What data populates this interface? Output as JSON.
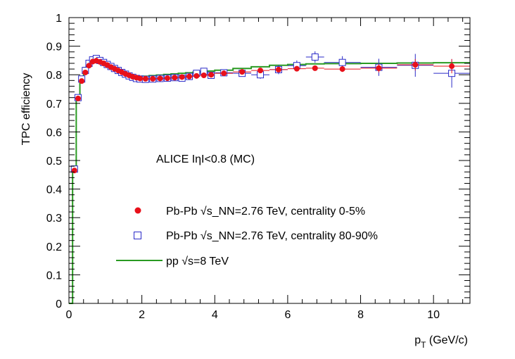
{
  "chart_data": {
    "type": "scatter",
    "ylabel": "TPC efficiency",
    "xlabel_main": "p",
    "xlabel_sub": "T",
    "xlabel_unit": " (GeV/c)",
    "xlim": [
      0,
      11
    ],
    "ylim": [
      0,
      1
    ],
    "xticks": [
      0,
      2,
      4,
      6,
      8,
      10
    ],
    "yticks": [
      0,
      0.1,
      0.2,
      0.3,
      0.4,
      0.5,
      0.6,
      0.7,
      0.8,
      0.9,
      1
    ],
    "ytick_labels": [
      "0",
      "0.1",
      "0.2",
      "0.3",
      "0.4",
      "0.5",
      "0.6",
      "0.7",
      "0.8",
      "0.9",
      "1"
    ],
    "grid": false,
    "annotation": "ALICE  IηI<0.8  (MC)",
    "legend": {
      "central": "Pb-Pb √s_NN=2.76 TeV, centrality 0-5%",
      "peripheral": "Pb-Pb √s_NN=2.76 TeV, centrality 80-90%",
      "pp": "pp √s=8 TeV"
    },
    "colors": {
      "central": "#e8101a",
      "peripheral": "#2a2ac8",
      "pp": "#2a9a22"
    },
    "series": [
      {
        "name": "Pb-Pb √s_NN=2.76 TeV, centrality 0-5%",
        "marker": "filled-circle",
        "x": [
          0.15,
          0.25,
          0.35,
          0.45,
          0.55,
          0.65,
          0.75,
          0.85,
          0.95,
          1.05,
          1.15,
          1.25,
          1.35,
          1.45,
          1.55,
          1.65,
          1.75,
          1.85,
          1.95,
          2.1,
          2.3,
          2.5,
          2.7,
          2.9,
          3.1,
          3.3,
          3.5,
          3.7,
          3.9,
          4.25,
          4.75,
          5.25,
          5.75,
          6.25,
          6.75,
          7.5,
          8.5,
          9.5,
          10.5
        ],
        "y": [
          0.465,
          0.717,
          0.778,
          0.808,
          0.832,
          0.846,
          0.849,
          0.845,
          0.84,
          0.834,
          0.827,
          0.821,
          0.815,
          0.809,
          0.803,
          0.798,
          0.793,
          0.79,
          0.787,
          0.786,
          0.786,
          0.787,
          0.788,
          0.79,
          0.792,
          0.794,
          0.796,
          0.798,
          0.8,
          0.805,
          0.81,
          0.815,
          0.818,
          0.821,
          0.823,
          0.82,
          0.823,
          0.835,
          0.83
        ],
        "xerr": [
          0.05,
          0.05,
          0.05,
          0.05,
          0.05,
          0.05,
          0.05,
          0.05,
          0.05,
          0.05,
          0.05,
          0.05,
          0.05,
          0.05,
          0.05,
          0.05,
          0.05,
          0.05,
          0.05,
          0.1,
          0.1,
          0.1,
          0.1,
          0.1,
          0.1,
          0.1,
          0.1,
          0.1,
          0.1,
          0.25,
          0.25,
          0.25,
          0.25,
          0.25,
          0.25,
          0.5,
          0.5,
          0.5,
          0.5
        ],
        "yerr": [
          0,
          0,
          0,
          0,
          0,
          0,
          0,
          0,
          0,
          0,
          0,
          0,
          0,
          0,
          0,
          0,
          0,
          0,
          0,
          0,
          0,
          0,
          0,
          0,
          0,
          0,
          0,
          0,
          0,
          0.003,
          0.004,
          0.005,
          0.006,
          0.007,
          0.008,
          0.01,
          0.015,
          0.02,
          0.025
        ]
      },
      {
        "name": "Pb-Pb √s_NN=2.76 TeV, centrality 80-90%",
        "marker": "open-square",
        "x": [
          0.15,
          0.25,
          0.35,
          0.45,
          0.55,
          0.65,
          0.75,
          0.85,
          0.95,
          1.05,
          1.15,
          1.25,
          1.35,
          1.45,
          1.55,
          1.65,
          1.75,
          1.85,
          1.95,
          2.1,
          2.3,
          2.5,
          2.7,
          2.9,
          3.1,
          3.3,
          3.5,
          3.7,
          3.9,
          4.25,
          4.75,
          5.25,
          5.75,
          6.25,
          6.75,
          7.5,
          8.5,
          9.5,
          10.5
        ],
        "y": [
          0.47,
          0.72,
          0.785,
          0.815,
          0.84,
          0.852,
          0.857,
          0.85,
          0.843,
          0.836,
          0.829,
          0.822,
          0.815,
          0.808,
          0.802,
          0.796,
          0.791,
          0.787,
          0.785,
          0.784,
          0.785,
          0.787,
          0.788,
          0.79,
          0.788,
          0.794,
          0.805,
          0.812,
          0.798,
          0.807,
          0.805,
          0.8,
          0.818,
          0.832,
          0.862,
          0.843,
          0.826,
          0.833,
          0.805
        ],
        "xerr": [
          0.05,
          0.05,
          0.05,
          0.05,
          0.05,
          0.05,
          0.05,
          0.05,
          0.05,
          0.05,
          0.05,
          0.05,
          0.05,
          0.05,
          0.05,
          0.05,
          0.05,
          0.05,
          0.05,
          0.1,
          0.1,
          0.1,
          0.1,
          0.1,
          0.1,
          0.1,
          0.1,
          0.1,
          0.1,
          0.25,
          0.25,
          0.25,
          0.25,
          0.25,
          0.25,
          0.5,
          0.5,
          0.5,
          0.5
        ],
        "yerr": [
          0,
          0,
          0,
          0,
          0,
          0,
          0,
          0,
          0,
          0,
          0,
          0,
          0,
          0,
          0,
          0,
          0,
          0,
          0,
          0,
          0,
          0,
          0,
          0,
          0.005,
          0.006,
          0.007,
          0.008,
          0.009,
          0.01,
          0.012,
          0.014,
          0.016,
          0.018,
          0.02,
          0.022,
          0.03,
          0.04,
          0.05
        ]
      },
      {
        "name": "pp √s=8 TeV",
        "marker": "step-line",
        "edges": [
          0,
          0.1,
          0.2,
          0.3,
          0.4,
          0.5,
          0.6,
          0.7,
          0.8,
          0.9,
          1.0,
          1.1,
          1.2,
          1.3,
          1.4,
          1.5,
          1.6,
          1.7,
          1.8,
          1.9,
          2.0,
          2.2,
          2.4,
          2.6,
          2.8,
          3.0,
          3.2,
          3.4,
          3.6,
          3.8,
          4.0,
          4.5,
          5.0,
          5.5,
          6.0,
          6.5,
          7.0,
          8.0,
          9.0,
          10.0,
          11.0
        ],
        "y": [
          0.0,
          0.48,
          0.725,
          0.79,
          0.825,
          0.847,
          0.858,
          0.857,
          0.851,
          0.845,
          0.838,
          0.831,
          0.824,
          0.818,
          0.812,
          0.806,
          0.801,
          0.797,
          0.794,
          0.792,
          0.795,
          0.797,
          0.799,
          0.801,
          0.803,
          0.805,
          0.807,
          0.809,
          0.811,
          0.813,
          0.816,
          0.822,
          0.828,
          0.833,
          0.836,
          0.838,
          0.839,
          0.84,
          0.841,
          0.842
        ]
      }
    ]
  }
}
